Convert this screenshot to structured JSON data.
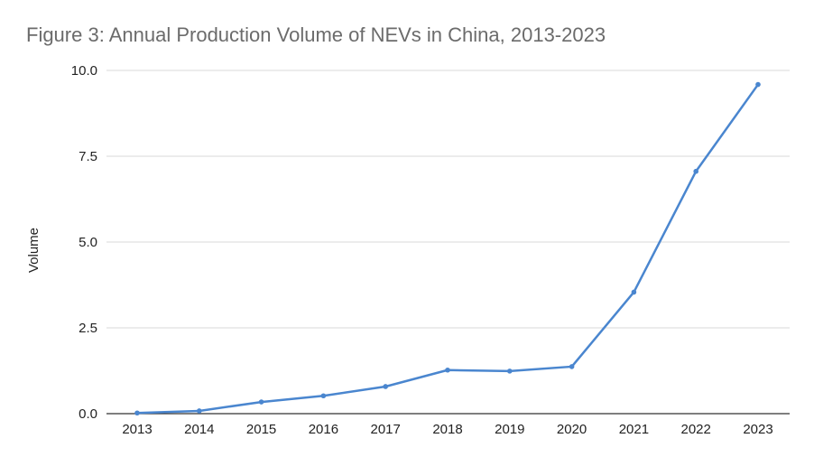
{
  "title": "Figure 3: Annual Production Volume of NEVs in China, 2013-2023",
  "chart_data": {
    "type": "line",
    "title": "Figure 3: Annual Production Volume of NEVs in China, 2013-2023",
    "xlabel": "",
    "ylabel": "Volume",
    "categories": [
      "2013",
      "2014",
      "2015",
      "2016",
      "2017",
      "2018",
      "2019",
      "2020",
      "2021",
      "2022",
      "2023"
    ],
    "series": [
      {
        "name": "Volume",
        "values": [
          0.02,
          0.08,
          0.34,
          0.52,
          0.79,
          1.27,
          1.24,
          1.37,
          3.54,
          7.06,
          9.59
        ]
      }
    ],
    "ylim": [
      0,
      10
    ],
    "yticks": [
      0,
      2.5,
      5,
      7.5,
      10
    ],
    "ytick_labels": [
      "0.0",
      "2.5",
      "5.0",
      "7.5",
      "10.0"
    ],
    "grid": true,
    "colors": {
      "line": "#4a86cf",
      "grid": "#d9d9d9",
      "axis": "#333333",
      "title": "#6b6b6b",
      "text": "#222222"
    }
  }
}
